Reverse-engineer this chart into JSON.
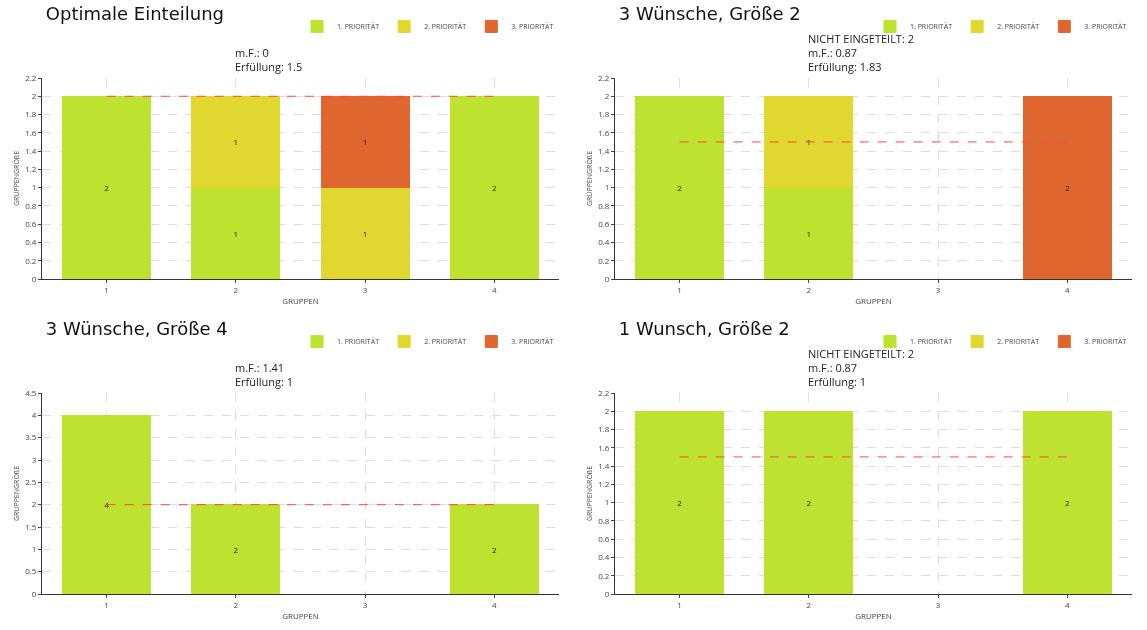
{
  "chart_data": [
    {
      "type": "bar",
      "title": "Optimale Einteilung",
      "annotations": [
        "m.F.: 0",
        "Erfüllung: 1.5"
      ],
      "xlabel": "GRUPPEN",
      "ylabel": "GRUPPENGRÖßE",
      "categories": [
        "1",
        "2",
        "3",
        "4"
      ],
      "stacked": true,
      "data_labels": true,
      "grid": true,
      "legend": "top right",
      "ylim": [
        0,
        2.2
      ],
      "yticks": [
        0,
        0.2,
        0.4,
        0.6,
        0.8,
        1,
        1.2,
        1.4,
        1.6,
        1.8,
        2,
        2.2
      ],
      "series": [
        {
          "name": "1. PRIORITÄT",
          "color": "#bde22f",
          "values": [
            2,
            1,
            null,
            2
          ]
        },
        {
          "name": "2. PRIORITÄT",
          "color": "#e0d72f",
          "values": [
            null,
            1,
            1,
            null
          ]
        },
        {
          "name": "3. PRIORITÄT",
          "color": "#e0662f",
          "values": [
            null,
            null,
            1,
            null
          ]
        }
      ],
      "ref_lines": [
        {
          "axis": "y",
          "value": 2,
          "color": "#ff4444",
          "line_style": "dashed"
        }
      ]
    },
    {
      "type": "bar",
      "title": "3 Wünsche, Größe 2",
      "annotations": [
        "NICHT EINGETEILT: 2",
        "m.F.: 0.87",
        "Erfüllung: 1.83"
      ],
      "xlabel": "GRUPPEN",
      "ylabel": "GRUPPENGRÖßE",
      "categories": [
        "1",
        "2",
        "3",
        "4"
      ],
      "stacked": true,
      "data_labels": true,
      "grid": true,
      "legend": "top right",
      "ylim": [
        0,
        2.2
      ],
      "yticks": [
        0,
        0.2,
        0.4,
        0.6,
        0.8,
        1,
        1.2,
        1.4,
        1.6,
        1.8,
        2,
        2.2
      ],
      "series": [
        {
          "name": "1. PRIORITÄT",
          "color": "#bde22f",
          "values": [
            2,
            1,
            null,
            null
          ]
        },
        {
          "name": "2. PRIORITÄT",
          "color": "#e0d72f",
          "values": [
            null,
            1,
            null,
            null
          ]
        },
        {
          "name": "3. PRIORITÄT",
          "color": "#e0662f",
          "values": [
            null,
            null,
            null,
            2
          ]
        }
      ],
      "ref_lines": [
        {
          "axis": "y",
          "value": 1.5,
          "color": "#ff4444",
          "line_style": "dashed"
        }
      ]
    },
    {
      "type": "bar",
      "title": "3 Wünsche, Größe 4",
      "annotations": [
        "m.F.: 1.41",
        "Erfüllung: 1"
      ],
      "xlabel": "GRUPPEN",
      "ylabel": "GRUPPENGRÖßE",
      "categories": [
        "1",
        "2",
        "3",
        "4"
      ],
      "stacked": true,
      "data_labels": true,
      "grid": true,
      "legend": "top right",
      "ylim": [
        0,
        4.5
      ],
      "yticks": [
        0,
        0.5,
        1,
        1.5,
        2,
        2.5,
        3,
        3.5,
        4,
        4.5
      ],
      "series": [
        {
          "name": "1. PRIORITÄT",
          "color": "#bde22f",
          "values": [
            4,
            2,
            null,
            2
          ]
        },
        {
          "name": "2. PRIORITÄT",
          "color": "#e0d72f",
          "values": [
            null,
            null,
            null,
            null
          ]
        },
        {
          "name": "3. PRIORITÄT",
          "color": "#e0662f",
          "values": [
            null,
            null,
            null,
            null
          ]
        }
      ],
      "ref_lines": [
        {
          "axis": "y",
          "value": 2,
          "color": "#ff4444",
          "line_style": "dashed"
        }
      ]
    },
    {
      "type": "bar",
      "title": "1 Wunsch, Größe 2",
      "annotations": [
        "NICHT EINGETEILT: 2",
        "m.F.: 0.87",
        "Erfüllung: 1"
      ],
      "xlabel": "GRUPPEN",
      "ylabel": "GRUPPENGRÖßE",
      "categories": [
        "1",
        "2",
        "3",
        "4"
      ],
      "stacked": true,
      "data_labels": true,
      "grid": true,
      "legend": "top right",
      "ylim": [
        0,
        2.2
      ],
      "yticks": [
        0,
        0.2,
        0.4,
        0.6,
        0.8,
        1,
        1.2,
        1.4,
        1.6,
        1.8,
        2,
        2.2
      ],
      "series": [
        {
          "name": "1. PRIORITÄT",
          "color": "#bde22f",
          "values": [
            2,
            2,
            null,
            2
          ]
        },
        {
          "name": "2. PRIORITÄT",
          "color": "#e0d72f",
          "values": [
            null,
            null,
            null,
            null
          ]
        },
        {
          "name": "3. PRIORITÄT",
          "color": "#e0662f",
          "values": [
            null,
            null,
            null,
            null
          ]
        }
      ],
      "ref_lines": [
        {
          "axis": "y",
          "value": 1.5,
          "color": "#ff4444",
          "line_style": "dashed"
        }
      ]
    }
  ]
}
